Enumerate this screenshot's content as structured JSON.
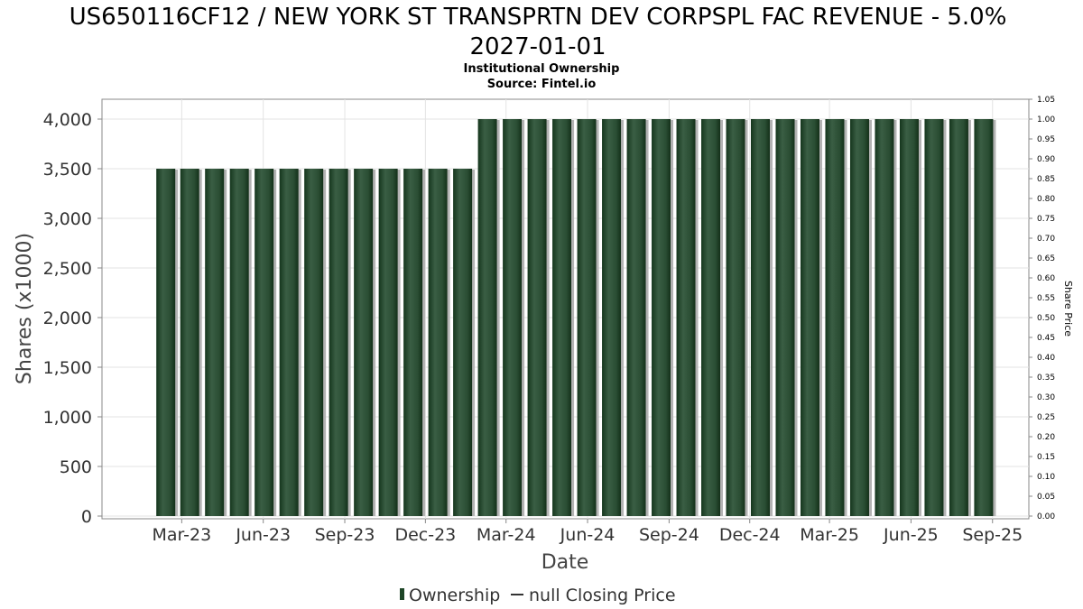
{
  "chart_data": {
    "type": "bar",
    "title_line1": "US650116CF12 / NEW YORK ST TRANSPRTN DEV CORPSPL FAC REVENUE - 5.0%",
    "title_line2": "2027-01-01",
    "subtitle": "Institutional Ownership",
    "source": "Source: Fintel.io",
    "xlabel": "Date",
    "ylabel": "Shares (x1000)",
    "y2label": "Share Price",
    "ylim": [
      0,
      4200
    ],
    "y2lim": [
      0,
      1.05
    ],
    "yticks": [
      "0",
      "500",
      "1,000",
      "1,500",
      "2,000",
      "2,500",
      "3,000",
      "3,500",
      "4,000"
    ],
    "ytick_values": [
      0,
      500,
      1000,
      1500,
      2000,
      2500,
      3000,
      3500,
      4000
    ],
    "y2ticks": [
      "0.00",
      "0.05",
      "0.10",
      "0.15",
      "0.20",
      "0.25",
      "0.30",
      "0.35",
      "0.40",
      "0.45",
      "0.50",
      "0.55",
      "0.60",
      "0.65",
      "0.70",
      "0.75",
      "0.80",
      "0.85",
      "0.90",
      "0.95",
      "1.00",
      "1.05"
    ],
    "x_range": [
      "2022-12-01",
      "2025-10-12"
    ],
    "xticks": [
      {
        "label": "Mar-23",
        "date": "2023-03-01"
      },
      {
        "label": "Jun-23",
        "date": "2023-06-01"
      },
      {
        "label": "Sep-23",
        "date": "2023-09-01"
      },
      {
        "label": "Dec-23",
        "date": "2023-12-01"
      },
      {
        "label": "Mar-24",
        "date": "2024-03-01"
      },
      {
        "label": "Jun-24",
        "date": "2024-06-01"
      },
      {
        "label": "Sep-24",
        "date": "2024-09-01"
      },
      {
        "label": "Dec-24",
        "date": "2024-12-01"
      },
      {
        "label": "Mar-25",
        "date": "2025-03-01"
      },
      {
        "label": "Jun-25",
        "date": "2025-06-01"
      },
      {
        "label": "Sep-25",
        "date": "2025-09-01"
      }
    ],
    "series": [
      {
        "name": "Ownership",
        "color": "#1d4526",
        "x": [
          "2023-02-11",
          "2023-03-10",
          "2023-04-07",
          "2023-05-05",
          "2023-06-02",
          "2023-06-30",
          "2023-07-28",
          "2023-08-25",
          "2023-09-22",
          "2023-10-20",
          "2023-11-17",
          "2023-12-15",
          "2024-01-12",
          "2024-02-09",
          "2024-03-08",
          "2024-04-05",
          "2024-05-03",
          "2024-05-31",
          "2024-06-28",
          "2024-07-26",
          "2024-08-23",
          "2024-09-20",
          "2024-10-18",
          "2024-11-15",
          "2024-12-13",
          "2025-01-10",
          "2025-02-07",
          "2025-03-07",
          "2025-04-04",
          "2025-05-02",
          "2025-05-30",
          "2025-06-27",
          "2025-07-25",
          "2025-08-22"
        ],
        "values": [
          3500,
          3500,
          3500,
          3500,
          3500,
          3500,
          3500,
          3500,
          3500,
          3500,
          3500,
          3500,
          3500,
          4000,
          4000,
          4000,
          4000,
          4000,
          4000,
          4000,
          4000,
          4000,
          4000,
          4000,
          4000,
          4000,
          4000,
          4000,
          4000,
          4000,
          4000,
          4000,
          4000,
          4000
        ]
      }
    ],
    "legend": [
      {
        "label": "Ownership",
        "marker": "bar"
      },
      {
        "label": "null Closing Price",
        "marker": "line"
      }
    ],
    "legend_position": "bottom",
    "grid": true
  }
}
